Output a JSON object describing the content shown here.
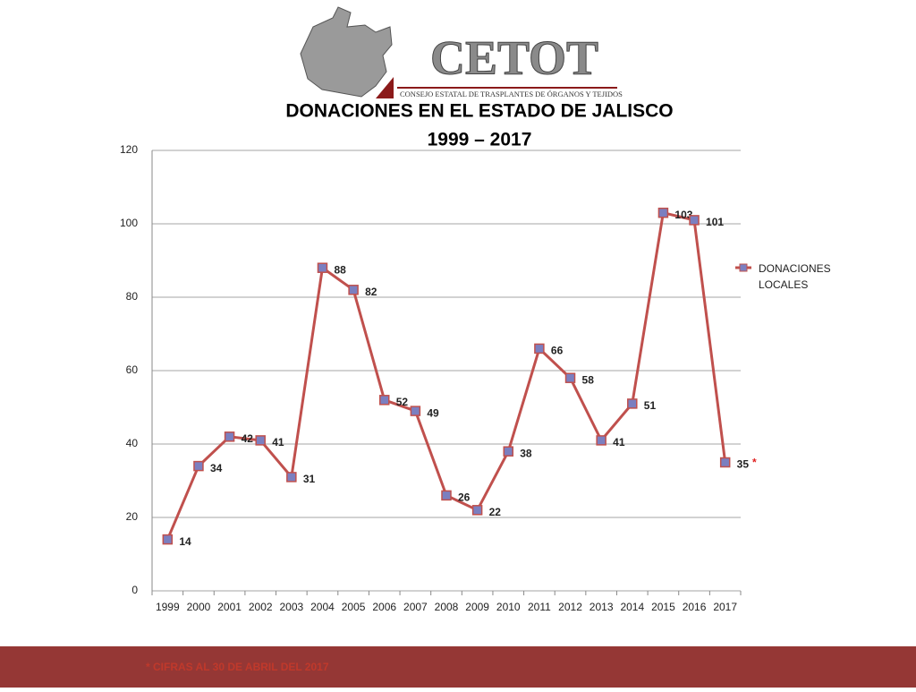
{
  "logo": {
    "name": "CETOT",
    "subtitle": "CONSEJO ESTATAL DE TRASPLANTES DE ÓRGANOS Y TEJIDOS"
  },
  "chart_data": {
    "type": "line",
    "title": "DONACIONES EN EL ESTADO DE JALISCO",
    "subtitle": "1999 – 2017",
    "categories": [
      "1999",
      "2000",
      "2001",
      "2002",
      "2003",
      "2004",
      "2005",
      "2006",
      "2007",
      "2008",
      "2009",
      "2010",
      "2011",
      "2012",
      "2013",
      "2014",
      "2015",
      "2016",
      "2017"
    ],
    "series": [
      {
        "name": "DONACIONES LOCALES",
        "color": "#c0504d",
        "marker_color": "#7b7fc0",
        "values": [
          14,
          34,
          42,
          41,
          31,
          88,
          82,
          52,
          49,
          26,
          22,
          38,
          66,
          58,
          41,
          51,
          103,
          101,
          35
        ]
      }
    ],
    "annotation": "*",
    "ylim": [
      0,
      120
    ],
    "yticks": [
      0,
      20,
      40,
      60,
      80,
      100,
      120
    ],
    "grid": true,
    "legend": "right"
  },
  "footnote": "* CIFRAS AL 30 DE ABRIL DEL 2017"
}
